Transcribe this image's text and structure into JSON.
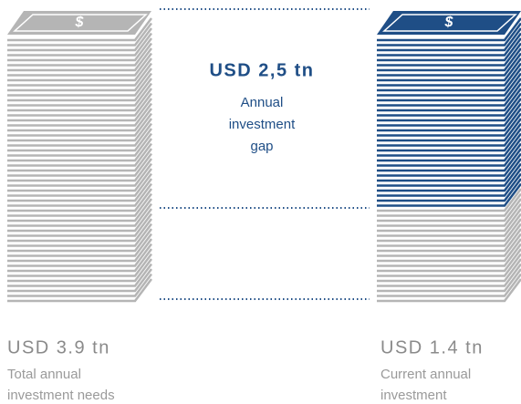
{
  "gap": {
    "amount": "USD 2,5 tn",
    "lines": [
      "Annual",
      "investment",
      "gap"
    ]
  },
  "left": {
    "symbol": "$",
    "amount": "USD 3.9 tn",
    "lines": [
      "Total annual",
      "investment needs"
    ]
  },
  "right": {
    "symbol": "$",
    "amount": "USD 1.4 tn",
    "lines": [
      "Current annual",
      "investment"
    ]
  }
}
